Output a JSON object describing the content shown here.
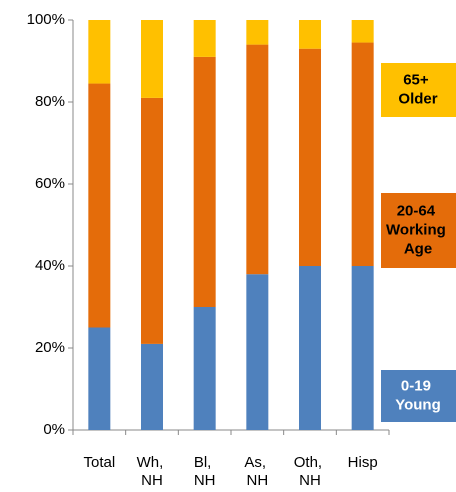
{
  "chart_data": {
    "type": "stacked_bar",
    "categories": [
      "Total",
      "Wh, NH",
      "Bl, NH",
      "As, NH",
      "Oth, NH",
      "Hisp"
    ],
    "series": [
      {
        "name": "0-19 Young",
        "color": "#4f81bd",
        "values": [
          25,
          21,
          30,
          38,
          40,
          40
        ]
      },
      {
        "name": "20-64 Working Age",
        "color": "#e46c0a",
        "values": [
          59.5,
          60,
          61,
          56,
          53,
          54.5
        ]
      },
      {
        "name": "65+ Older",
        "color": "#ffc000",
        "values": [
          15.5,
          19,
          9,
          6,
          7,
          5.5
        ]
      }
    ],
    "ylim": [
      0,
      100
    ],
    "yticks": [
      {
        "value": 0,
        "label": "0%"
      },
      {
        "value": 20,
        "label": "20%"
      },
      {
        "value": 40,
        "label": "40%"
      },
      {
        "value": 60,
        "label": "60%"
      },
      {
        "value": 80,
        "label": "80%"
      },
      {
        "value": 100,
        "label": "100%"
      }
    ]
  }
}
